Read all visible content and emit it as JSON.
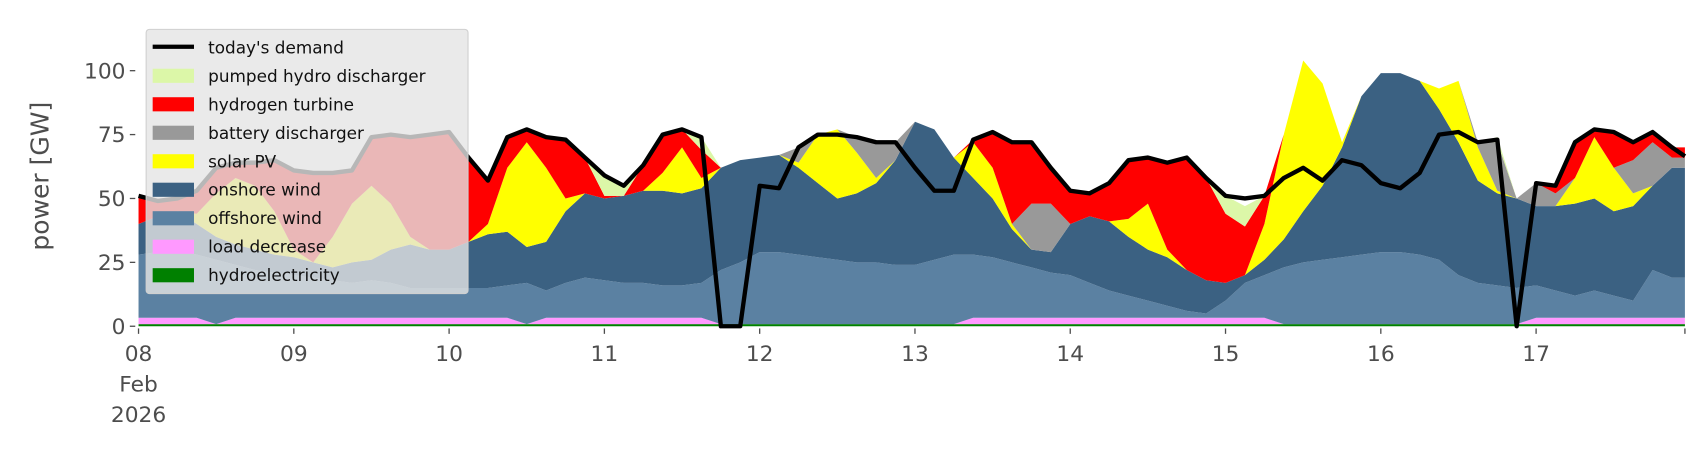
{
  "chart_data": {
    "type": "area",
    "stacked": true,
    "ylabel": "power [GW]",
    "xlabel": "",
    "ylim": [
      0,
      118
    ],
    "xlim": [
      "2026-02-08 00:00",
      "2026-02-17 23:00"
    ],
    "grid": false,
    "legend_placement": "top-left",
    "y_ticks": [
      0,
      25,
      50,
      75,
      100
    ],
    "x_ticks": [
      {
        "date": "2026-02-08 00:00",
        "label": [
          "08",
          "Feb",
          "2026"
        ]
      },
      {
        "date": "2026-02-09 00:00",
        "label": [
          "09"
        ]
      },
      {
        "date": "2026-02-10 00:00",
        "label": [
          "10"
        ]
      },
      {
        "date": "2026-02-11 00:00",
        "label": [
          "11"
        ]
      },
      {
        "date": "2026-02-12 00:00",
        "label": [
          "12"
        ]
      },
      {
        "date": "2026-02-13 00:00",
        "label": [
          "13"
        ]
      },
      {
        "date": "2026-02-14 00:00",
        "label": [
          "14"
        ]
      },
      {
        "date": "2026-02-15 00:00",
        "label": [
          "15"
        ]
      },
      {
        "date": "2026-02-16 00:00",
        "label": [
          "16"
        ]
      },
      {
        "date": "2026-02-17 00:00",
        "label": [
          "17"
        ]
      }
    ],
    "x": [
      "2026-02-08 00:00",
      "2026-02-08 03:00",
      "2026-02-08 06:00",
      "2026-02-08 09:00",
      "2026-02-08 12:00",
      "2026-02-08 15:00",
      "2026-02-08 18:00",
      "2026-02-08 21:00",
      "2026-02-09 00:00",
      "2026-02-09 03:00",
      "2026-02-09 06:00",
      "2026-02-09 09:00",
      "2026-02-09 12:00",
      "2026-02-09 15:00",
      "2026-02-09 18:00",
      "2026-02-09 21:00",
      "2026-02-10 00:00",
      "2026-02-10 03:00",
      "2026-02-10 06:00",
      "2026-02-10 09:00",
      "2026-02-10 12:00",
      "2026-02-10 15:00",
      "2026-02-10 18:00",
      "2026-02-10 21:00",
      "2026-02-11 00:00",
      "2026-02-11 03:00",
      "2026-02-11 06:00",
      "2026-02-11 09:00",
      "2026-02-11 12:00",
      "2026-02-11 15:00",
      "2026-02-11 18:00",
      "2026-02-11 21:00",
      "2026-02-12 00:00",
      "2026-02-12 03:00",
      "2026-02-12 06:00",
      "2026-02-12 09:00",
      "2026-02-12 12:00",
      "2026-02-12 15:00",
      "2026-02-12 18:00",
      "2026-02-12 21:00",
      "2026-02-13 00:00",
      "2026-02-13 03:00",
      "2026-02-13 06:00",
      "2026-02-13 09:00",
      "2026-02-13 12:00",
      "2026-02-13 15:00",
      "2026-02-13 18:00",
      "2026-02-13 21:00",
      "2026-02-14 00:00",
      "2026-02-14 03:00",
      "2026-02-14 06:00",
      "2026-02-14 09:00",
      "2026-02-14 12:00",
      "2026-02-14 15:00",
      "2026-02-14 18:00",
      "2026-02-14 21:00",
      "2026-02-15 00:00",
      "2026-02-15 03:00",
      "2026-02-15 06:00",
      "2026-02-15 09:00",
      "2026-02-15 12:00",
      "2026-02-15 15:00",
      "2026-02-15 18:00",
      "2026-02-15 21:00",
      "2026-02-16 00:00",
      "2026-02-16 03:00",
      "2026-02-16 06:00",
      "2026-02-16 09:00",
      "2026-02-16 12:00",
      "2026-02-16 15:00",
      "2026-02-16 18:00",
      "2026-02-16 21:00",
      "2026-02-17 00:00",
      "2026-02-17 03:00",
      "2026-02-17 06:00",
      "2026-02-17 09:00",
      "2026-02-17 12:00",
      "2026-02-17 15:00",
      "2026-02-17 18:00",
      "2026-02-17 21:00"
    ],
    "demand": {
      "name": "today's demand",
      "color": "#000000",
      "values": [
        51,
        49,
        50,
        53,
        62,
        64,
        64,
        65,
        61,
        60,
        60,
        61,
        74,
        75,
        74,
        75,
        76,
        66,
        57,
        74,
        77,
        74,
        73,
        66,
        59,
        55,
        63,
        75,
        77,
        74,
        0,
        0,
        55,
        54,
        70,
        75,
        75,
        74,
        72,
        72,
        62,
        53,
        53,
        73,
        76,
        72,
        72,
        62,
        53,
        52,
        56,
        65,
        66,
        64,
        66,
        58,
        51,
        50,
        51,
        58,
        62,
        57,
        65,
        63,
        56,
        54,
        60,
        75,
        76,
        72,
        73,
        0,
        56,
        55,
        72,
        77,
        76,
        72,
        76,
        70
      ]
    },
    "series": [
      {
        "name": "hydroelectricity",
        "color": "#008000",
        "values": [
          0.8,
          0.8,
          0.8,
          0.8,
          0.8,
          0.8,
          0.8,
          0.8,
          0.8,
          0.8,
          0.8,
          0.8,
          0.8,
          0.8,
          0.8,
          0.8,
          0.8,
          0.8,
          0.8,
          0.8,
          0.8,
          0.8,
          0.8,
          0.8,
          0.8,
          0.8,
          0.8,
          0.8,
          0.8,
          0.8,
          0.8,
          0.8,
          0.8,
          0.8,
          0.8,
          0.8,
          0.8,
          0.8,
          0.8,
          0.8,
          0.8,
          0.8,
          0.8,
          0.8,
          0.8,
          0.8,
          0.8,
          0.8,
          0.8,
          0.8,
          0.8,
          0.8,
          0.8,
          0.8,
          0.8,
          0.8,
          0.8,
          0.8,
          0.8,
          0.8,
          0.8,
          0.8,
          0.8,
          0.8,
          0.8,
          0.8,
          0.8,
          0.8,
          0.8,
          0.8,
          0.8,
          0.8,
          0.8,
          0.8,
          0.8,
          0.8,
          0.8,
          0.8,
          0.8,
          0.8
        ]
      },
      {
        "name": "load decrease",
        "color": "#ff99ff",
        "values": [
          2.5,
          2.5,
          2.5,
          2.5,
          0,
          2.5,
          2.5,
          2.5,
          2.5,
          2.5,
          2.5,
          2.5,
          2.5,
          2.5,
          2.5,
          2.5,
          2.5,
          2.5,
          2.5,
          2.5,
          0,
          2.5,
          2.5,
          2.5,
          2.5,
          2.5,
          2.5,
          2.5,
          2.5,
          2.5,
          0,
          0,
          0,
          0,
          0,
          0,
          0,
          0,
          0,
          0,
          0,
          0,
          0,
          2.5,
          2.5,
          2.5,
          2.5,
          2.5,
          2.5,
          2.5,
          2.5,
          2.5,
          2.5,
          2.5,
          2.5,
          2.5,
          2.5,
          2.5,
          2.5,
          0,
          0,
          0,
          0,
          0,
          0,
          0,
          0,
          0,
          0,
          0,
          0,
          0,
          2.5,
          2.5,
          2.5,
          2.5,
          2.5,
          2.5,
          2.5,
          2.5
        ]
      },
      {
        "name": "offshore wind",
        "color": "#5b81a2",
        "values": [
          24.7,
          25.7,
          26.7,
          24.7,
          25.2,
          20.7,
          18.7,
          17.7,
          16.7,
          15.7,
          14.7,
          13.7,
          14.7,
          13.7,
          11.7,
          11.7,
          11.7,
          11.7,
          11.7,
          12.7,
          16.2,
          10.7,
          13.7,
          15.7,
          14.7,
          13.7,
          13.7,
          12.7,
          12.7,
          13.7,
          21.2,
          24.2,
          28.2,
          28.2,
          27.2,
          26.2,
          25.2,
          24.2,
          24.2,
          23.2,
          23.2,
          25.2,
          27.2,
          24.7,
          23.7,
          21.7,
          19.7,
          17.7,
          16.7,
          13.7,
          10.7,
          8.7,
          6.7,
          4.7,
          2.7,
          1.7,
          6.7,
          13.7,
          16.7,
          22.2,
          24.2,
          25.2,
          26.2,
          27.2,
          28.2,
          28.2,
          27.2,
          25.2,
          19.2,
          16.2,
          15.2,
          14.2,
          12.7,
          10.7,
          8.7,
          10.7,
          8.7,
          6.7,
          18.7,
          15.7
        ]
      },
      {
        "name": "onshore wind",
        "color": "#3b6182",
        "values": [
          12,
          14,
          15,
          12,
          9,
          8,
          8,
          7,
          7,
          6,
          5,
          8,
          8,
          13,
          17,
          15,
          15,
          18,
          21,
          21,
          14,
          19,
          28,
          33,
          32,
          34,
          36,
          37,
          36,
          37,
          40,
          40,
          37,
          38,
          34,
          29,
          24,
          27,
          31,
          41,
          56,
          51,
          38,
          30,
          23,
          13,
          7,
          8,
          20,
          26,
          27,
          23,
          20,
          19,
          16,
          13,
          7,
          3,
          6,
          11,
          20,
          29,
          43,
          62,
          70,
          70,
          68,
          59,
          52,
          40,
          36,
          35,
          31,
          33,
          36,
          36,
          33,
          37,
          33,
          43
        ]
      },
      {
        "name": "solar PV",
        "color": "#ffff00",
        "values": [
          0,
          0,
          0,
          4,
          17,
          26,
          25,
          17,
          3,
          0,
          12,
          23,
          29,
          18,
          3,
          0,
          0,
          0,
          4,
          25,
          41,
          29,
          5,
          0,
          0,
          0,
          0,
          7,
          18,
          4,
          0,
          0,
          0,
          0,
          2,
          19,
          27,
          16,
          2,
          0,
          0,
          0,
          0,
          14,
          12,
          2,
          0,
          0,
          0,
          0,
          0,
          7,
          18,
          3,
          0,
          0,
          0,
          0,
          14,
          41,
          59,
          40,
          2,
          0,
          0,
          0,
          0,
          8,
          24,
          13,
          1,
          0,
          0,
          0,
          10,
          24,
          17,
          5,
          0,
          0
        ]
      },
      {
        "name": "battery discharger",
        "color": "#999999",
        "values": [
          0,
          0,
          0,
          0,
          0,
          0,
          0,
          0,
          0,
          0,
          0,
          0,
          0,
          0,
          0,
          0,
          0,
          0,
          0,
          0,
          0,
          0,
          0,
          0,
          0,
          0,
          0,
          0,
          0,
          0,
          0,
          0,
          0,
          0,
          6,
          0,
          0,
          6,
          14,
          7,
          0,
          0,
          0,
          0,
          0,
          0,
          18,
          19,
          0,
          0,
          0,
          0,
          0,
          0,
          0,
          0,
          0,
          0,
          0,
          0,
          0,
          0,
          0,
          0,
          0,
          0,
          0,
          0,
          0,
          2,
          19,
          0,
          9,
          5,
          0,
          0,
          0,
          13,
          17,
          4
        ]
      },
      {
        "name": "hydrogen turbine",
        "color": "#ff0000",
        "values": [
          11,
          6,
          5,
          9,
          10,
          6,
          9,
          20,
          31,
          35,
          25,
          13,
          19,
          27,
          39,
          45,
          46,
          33,
          17,
          12,
          5,
          12,
          23,
          14,
          1,
          0,
          10,
          15,
          7,
          11,
          0,
          0,
          0,
          0,
          0,
          0,
          0,
          0,
          0,
          0,
          0,
          0,
          0,
          1,
          14,
          32,
          24,
          14,
          13,
          9,
          15,
          23,
          18,
          34,
          44,
          40,
          27,
          19,
          11,
          0,
          0,
          0,
          0,
          0,
          0,
          0,
          0,
          0,
          0,
          0,
          0,
          0,
          0,
          3,
          14,
          3,
          14,
          7,
          4,
          4
        ]
      },
      {
        "name": "pumped hydro discharger",
        "color": "#dcf7a8",
        "values": [
          0,
          0,
          0,
          0,
          0,
          0,
          0,
          0,
          0,
          0,
          0,
          0,
          0,
          0,
          0,
          0,
          0,
          0,
          0,
          0,
          0,
          0,
          0,
          0,
          8,
          4,
          0,
          0,
          0,
          5,
          0,
          0,
          0,
          0,
          0,
          0,
          0,
          0,
          0,
          0,
          0,
          0,
          0,
          0,
          0,
          0,
          0,
          0,
          0,
          0,
          0,
          0,
          0,
          0,
          0,
          0,
          7,
          8,
          0,
          0,
          0,
          0,
          0,
          0,
          0,
          0,
          0,
          0,
          0,
          0,
          2,
          0,
          0,
          0,
          0,
          0,
          0,
          0,
          0,
          0
        ]
      }
    ]
  }
}
